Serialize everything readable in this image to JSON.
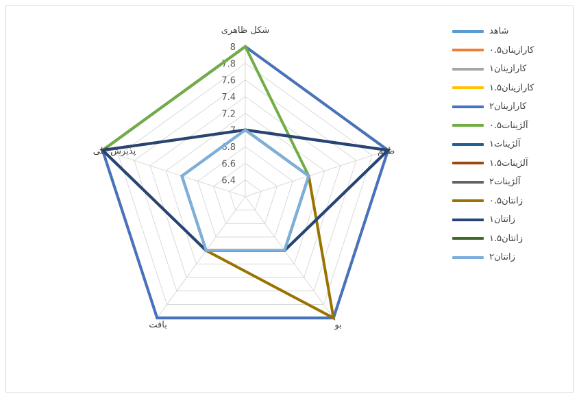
{
  "chart_data": {
    "type": "radar",
    "axes": [
      "شکل ظاهری",
      "طعم",
      "بو",
      "بافت",
      "پذیرش کلی"
    ],
    "ticks": [
      "6.4",
      "6.6",
      "6.8",
      "7",
      "7.2",
      "7.4",
      "7.6",
      "7.8",
      "8"
    ],
    "rlim": [
      6.2,
      8
    ],
    "grid": true,
    "legend_position": "right",
    "series": [
      {
        "name": "شاهد",
        "color": "#5b9bd5",
        "values": [
          7,
          7,
          7,
          7,
          7
        ]
      },
      {
        "name": "کارازینان۰.۵",
        "color": "#ed7d31",
        "values": [
          8,
          8,
          8,
          8,
          8
        ]
      },
      {
        "name": "کارازینان۱",
        "color": "#a5a5a5",
        "values": [
          8,
          8,
          8,
          8,
          8
        ]
      },
      {
        "name": "کارازینان۱.۵",
        "color": "#ffc000",
        "values": [
          8,
          8,
          8,
          8,
          8
        ]
      },
      {
        "name": "کارازینان۲",
        "color": "#4472c4",
        "values": [
          8,
          8,
          8,
          8,
          8
        ]
      },
      {
        "name": "آلژینات۰.۵",
        "color": "#70ad47",
        "values": [
          8,
          7,
          7,
          7,
          8
        ]
      },
      {
        "name": "آلژینات۱",
        "color": "#255e91",
        "values": [
          7,
          8,
          7,
          7,
          8
        ]
      },
      {
        "name": "آلژینات۱.۵",
        "color": "#9e480e",
        "values": [
          7,
          8,
          7,
          7,
          8
        ]
      },
      {
        "name": "آلژینات۲",
        "color": "#636363",
        "values": [
          7,
          8,
          7,
          7,
          8
        ]
      },
      {
        "name": "زانتان۰.۵",
        "color": "#997300",
        "values": [
          7,
          7,
          8,
          7,
          8
        ]
      },
      {
        "name": "زانتان۱",
        "color": "#264478",
        "values": [
          7,
          8,
          7,
          7,
          8
        ]
      },
      {
        "name": "زانتان۱.۵",
        "color": "#43682b",
        "values": [
          7,
          7,
          7,
          7,
          7
        ]
      },
      {
        "name": "زانتان۲",
        "color": "#7cafdd",
        "values": [
          7,
          7,
          7,
          7,
          7
        ]
      }
    ]
  }
}
